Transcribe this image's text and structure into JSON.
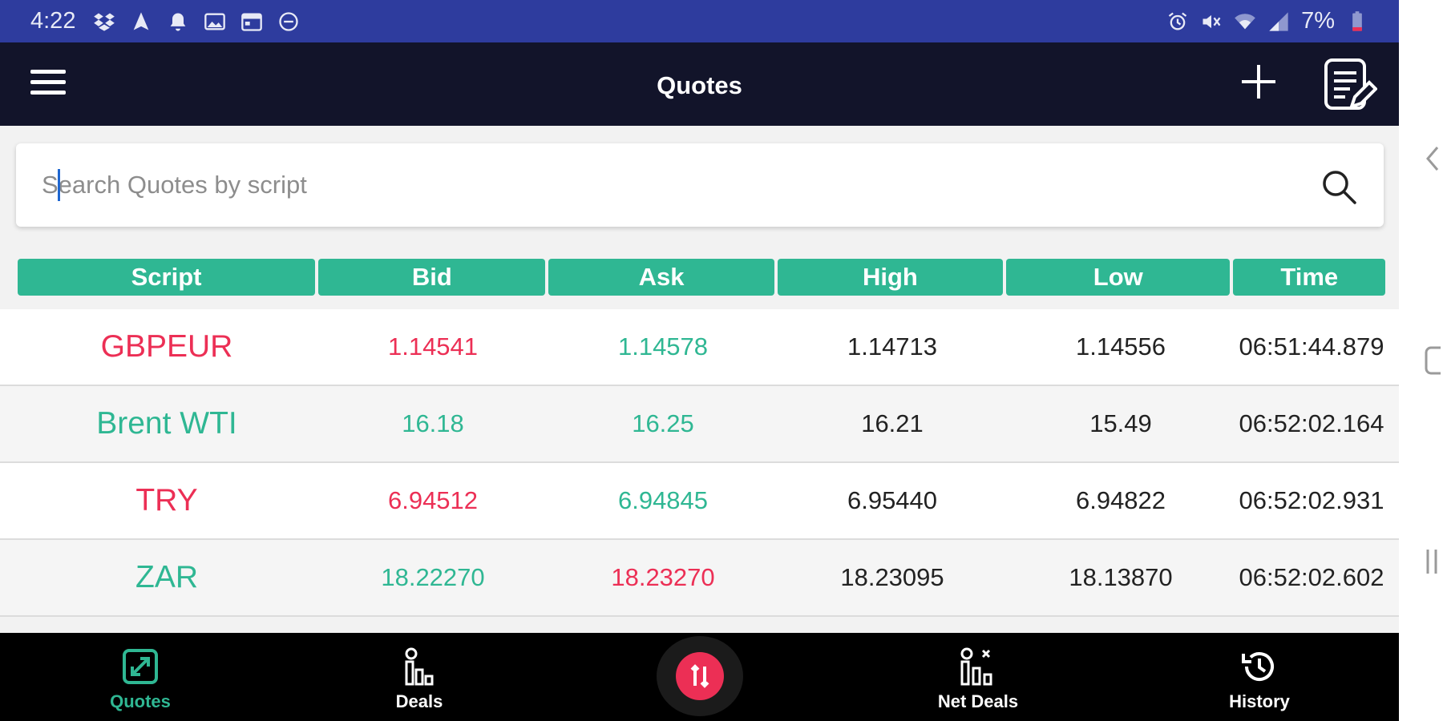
{
  "status_bar": {
    "time": "4:22",
    "battery": "7%",
    "icons": [
      "dropbox-icon",
      "navigation-icon",
      "notification-bell-icon",
      "image-icon",
      "calendar-icon",
      "do-not-disturb-icon"
    ],
    "right_icons": [
      "alarm-icon",
      "mute-icon",
      "wifi-icon",
      "signal-icon",
      "battery-icon"
    ]
  },
  "app_bar": {
    "title": "Quotes",
    "menu_icon": "hamburger-menu-icon",
    "add_icon": "plus-icon",
    "edit_icon": "edit-list-icon"
  },
  "search": {
    "placeholder": "Search Quotes by script",
    "value": "",
    "icon": "search-icon"
  },
  "table": {
    "columns": [
      "Script",
      "Bid",
      "Ask",
      "High",
      "Low",
      "Time"
    ],
    "rows": [
      {
        "script": "GBPEUR",
        "bid": "1.14541",
        "ask": "1.14578",
        "high": "1.14713",
        "low": "1.14556",
        "time": "06:51:44.879",
        "script_color": "#ec2f55",
        "bid_color": "#ec2f55",
        "ask_color": "#2fb793"
      },
      {
        "script": "Brent WTI",
        "bid": "16.18",
        "ask": "16.25",
        "high": "16.21",
        "low": "15.49",
        "time": "06:52:02.164",
        "script_color": "#2fb793",
        "bid_color": "#2fb793",
        "ask_color": "#2fb793"
      },
      {
        "script": "TRY",
        "bid": "6.94512",
        "ask": "6.94845",
        "high": "6.95440",
        "low": "6.94822",
        "time": "06:52:02.931",
        "script_color": "#ec2f55",
        "bid_color": "#ec2f55",
        "ask_color": "#2fb793"
      },
      {
        "script": "ZAR",
        "bid": "18.22270",
        "ask": "18.23270",
        "high": "18.23095",
        "low": "18.13870",
        "time": "06:52:02.602",
        "script_color": "#2fb793",
        "bid_color": "#2fb793",
        "ask_color": "#ec2f55"
      }
    ]
  },
  "bottom_nav": {
    "items": [
      {
        "label": "Quotes",
        "icon": "quotes-expand-icon",
        "active": true
      },
      {
        "label": "Deals",
        "icon": "deals-icon",
        "active": false
      },
      {
        "label": "Net Deals",
        "icon": "net-deals-icon",
        "active": false
      },
      {
        "label": "History",
        "icon": "history-icon",
        "active": false
      }
    ],
    "center_button_icon": "trade-center-icon"
  },
  "colors": {
    "accent_green": "#2fb793",
    "accent_red": "#ec2f55",
    "status_bar": "#2e3c9e",
    "app_bar": "#12142a"
  }
}
